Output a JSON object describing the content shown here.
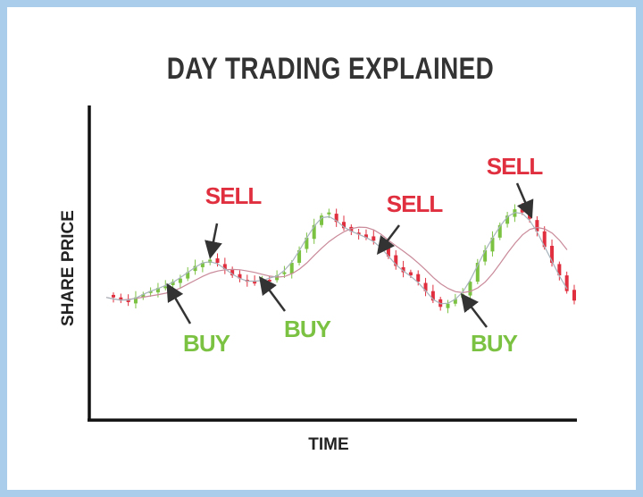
{
  "chart_data": {
    "type": "candlestick",
    "title": "DAY TRADING EXPLAINED",
    "xlabel": "TIME",
    "ylabel": "SHARE PRICE",
    "ylim": [
      0,
      100
    ],
    "grid": false,
    "ticks": false,
    "closes": [
      39,
      38,
      37.5,
      39,
      40,
      41,
      42,
      42.5,
      44,
      45,
      47,
      49,
      50,
      51,
      50,
      48,
      46,
      45,
      44,
      43.5,
      45,
      44.5,
      46,
      47,
      50,
      54,
      58,
      62,
      65,
      66,
      63,
      61,
      60,
      59,
      58,
      57,
      55,
      52,
      49,
      47,
      46,
      44,
      41,
      38,
      36,
      37,
      38.5,
      40,
      44,
      50,
      54,
      58,
      62,
      65,
      67,
      66,
      64,
      60,
      55,
      50,
      46,
      41,
      38
    ],
    "overlays": [
      "short moving average",
      "long moving average"
    ],
    "annotations": [
      {
        "text": "SELL",
        "type": "sell"
      },
      {
        "text": "SELL",
        "type": "sell"
      },
      {
        "text": "SELL",
        "type": "sell"
      },
      {
        "text": "BUY",
        "type": "buy"
      },
      {
        "text": "BUY",
        "type": "buy"
      },
      {
        "text": "BUY",
        "type": "buy"
      }
    ],
    "colors": {
      "up": "#7cc242",
      "down": "#e0303f",
      "sell_label": "#e0303f",
      "buy_label": "#7cc242",
      "short_ma": "#a8b4bc",
      "long_ma": "#c98a9a",
      "axis": "#111111",
      "border": "#a9cdeb"
    }
  }
}
